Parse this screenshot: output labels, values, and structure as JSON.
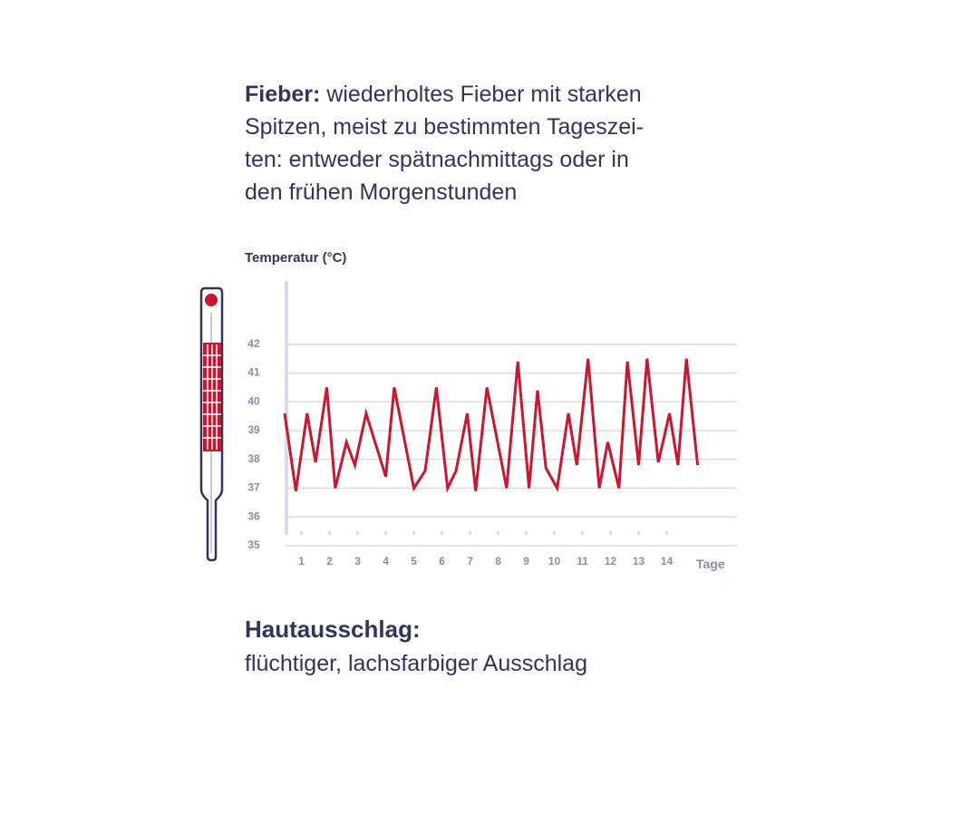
{
  "chart_data": {
    "type": "line",
    "title": "Fieber:",
    "subtitle_lines": [
      "wiederholtes Fieber mit starken",
      "Spitzen, meist zu bestimmten Tageszei-",
      "ten: entweder spätnachmittags oder in",
      "den frühen Morgenstunden"
    ],
    "ylabel": "Temperatur (°C)",
    "xlabel": "Tage",
    "x": [
      0.4,
      0.8,
      1.2,
      1.5,
      1.9,
      2.2,
      2.6,
      2.9,
      3.3,
      4.0,
      4.3,
      5.0,
      5.4,
      5.8,
      6.2,
      6.5,
      6.9,
      7.2,
      7.6,
      8.3,
      8.7,
      9.1,
      9.4,
      9.7,
      10.1,
      10.5,
      10.8,
      11.2,
      11.6,
      11.9,
      12.3,
      12.6,
      13.0,
      13.3,
      13.7,
      14.1,
      14.4,
      14.7,
      15.1
    ],
    "values": [
      39.6,
      36.9,
      39.6,
      37.9,
      40.5,
      37.0,
      38.6,
      37.8,
      39.6,
      37.4,
      40.5,
      37.0,
      37.6,
      40.5,
      37.0,
      37.6,
      39.6,
      36.9,
      40.5,
      37.0,
      41.4,
      37.0,
      40.4,
      37.7,
      37.0,
      39.6,
      37.8,
      41.5,
      37.0,
      38.6,
      37.0,
      41.4,
      37.8,
      41.5,
      37.9,
      39.6,
      37.8,
      41.5,
      37.8
    ],
    "color": "#cf1430",
    "xlim": [
      0.4,
      16.5
    ],
    "xticks": [
      1,
      2,
      3,
      4,
      5,
      6,
      7,
      8,
      9,
      10,
      11,
      12,
      13,
      14
    ],
    "ylim": [
      35,
      44.2
    ],
    "yticks": [
      35,
      36,
      37,
      38,
      39,
      40,
      41,
      42
    ],
    "grid": true,
    "note_title": "Hautausschlag:",
    "note_text": "flüchtiger, lachsfarbiger Ausschlag"
  }
}
